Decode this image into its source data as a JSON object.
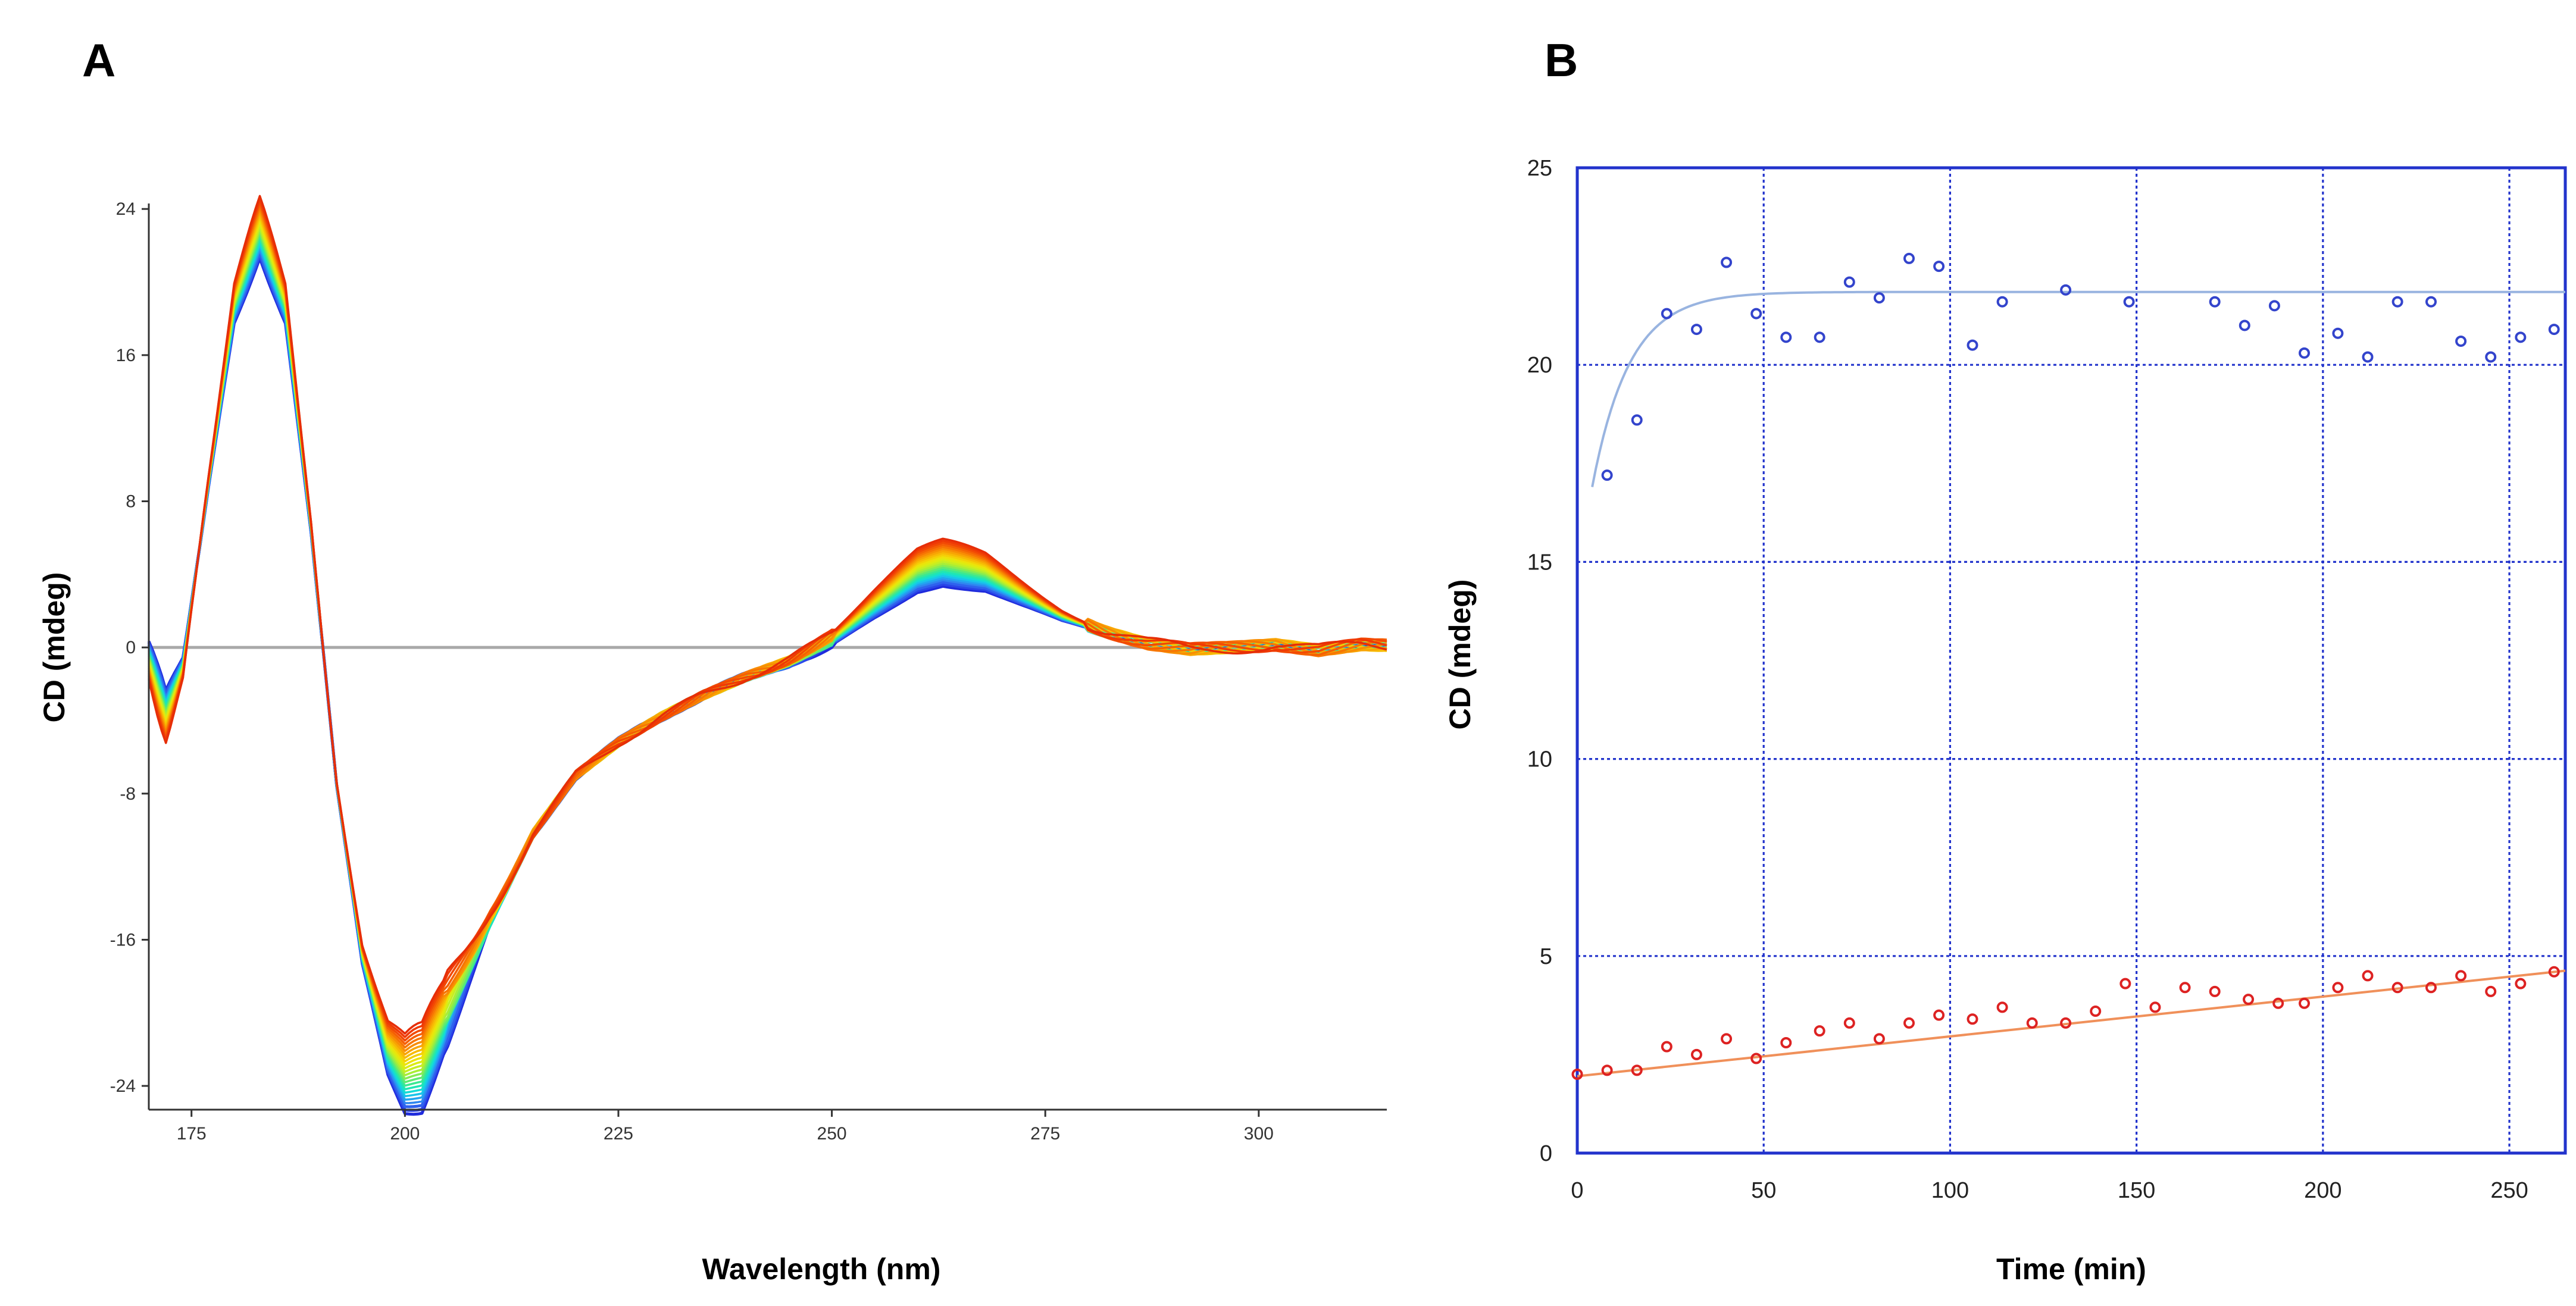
{
  "chart_data": [
    {
      "panel": "A",
      "type": "line",
      "title": "",
      "xlabel": "Wavelength (nm)",
      "ylabel": "CD (mdeg)",
      "xlim": [
        170,
        315
      ],
      "ylim": [
        -25.3,
        24.3
      ],
      "xticks": [
        175,
        200,
        225,
        250,
        275,
        300
      ],
      "yticks": [
        24,
        16,
        8,
        0,
        -8,
        -16,
        -24
      ],
      "grid": false,
      "zero_line": true,
      "series_count": 24,
      "series_colors": [
        "#1f2bdc",
        "#2a45e8",
        "#2f62ee",
        "#2f86f0",
        "#22a5f0",
        "#19c4ea",
        "#15dcd4",
        "#1fe6b4",
        "#3be893",
        "#5eea73",
        "#86ec52",
        "#a9ee36",
        "#c6ee22",
        "#dcec12",
        "#ece30a",
        "#f4d006",
        "#f7bb04",
        "#f8a503",
        "#f88e03",
        "#f77603",
        "#f56003",
        "#f24a04",
        "#ef3a05",
        "#e62e08"
      ],
      "profile": {
        "x": [
          170,
          172,
          174,
          177,
          180,
          183,
          186,
          189,
          192,
          195,
          198,
          200,
          202,
          205,
          210,
          215,
          220,
          225,
          230,
          235,
          240,
          245,
          250,
          255,
          260,
          263,
          268,
          272,
          277,
          282,
          287,
          292,
          297,
          302,
          307,
          312,
          315
        ],
        "y": [
          -0.5,
          -3.5,
          -1.0,
          9.0,
          18.5,
          22.5,
          18.5,
          6.5,
          -7.5,
          -17.0,
          -22.5,
          -24.2,
          -24.0,
          -20.5,
          -15.0,
          -10.2,
          -7.0,
          -5.2,
          -3.8,
          -2.6,
          -1.6,
          -0.8,
          0.3,
          2.0,
          3.6,
          4.0,
          3.6,
          2.7,
          1.6,
          0.8,
          0.2,
          -0.1,
          0.0,
          0.15,
          -0.15,
          0.15,
          0.1
        ]
      }
    },
    {
      "panel": "B",
      "type": "scatter",
      "title": "",
      "xlabel": "Time (min)",
      "ylabel": "CD (mdeg)",
      "xlim": [
        0,
        265
      ],
      "ylim": [
        0,
        25
      ],
      "xticks": [
        0,
        50,
        100,
        150,
        200,
        250
      ],
      "yticks": [
        0,
        5,
        10,
        15,
        20,
        25
      ],
      "grid": true,
      "series": [
        {
          "name": "blue",
          "color": "#3344cc",
          "x": [
            8,
            16,
            24,
            32,
            40,
            48,
            56,
            65,
            73,
            81,
            89,
            97,
            106,
            114,
            131,
            148,
            171,
            179,
            187,
            195,
            204,
            212,
            220,
            229,
            237,
            245,
            253,
            262
          ],
          "y": [
            17.2,
            18.6,
            21.3,
            20.9,
            22.6,
            21.3,
            20.7,
            20.7,
            22.1,
            21.7,
            22.7,
            22.5,
            20.5,
            21.6,
            21.9,
            21.6,
            21.6,
            21.0,
            21.5,
            20.3,
            20.8,
            20.2,
            21.6,
            21.6,
            20.6,
            20.2,
            20.7,
            20.9
          ]
        },
        {
          "name": "red",
          "color": "#dd2222",
          "x": [
            0,
            8,
            16,
            24,
            32,
            40,
            48,
            56,
            65,
            73,
            81,
            89,
            97,
            106,
            114,
            122,
            131,
            139,
            147,
            155,
            163,
            171,
            180,
            188,
            195,
            204,
            212,
            220,
            229,
            237,
            245,
            253,
            262
          ],
          "y": [
            2.0,
            2.1,
            2.1,
            2.7,
            2.5,
            2.9,
            2.4,
            2.8,
            3.1,
            3.3,
            2.9,
            3.3,
            3.5,
            3.4,
            3.7,
            3.3,
            3.3,
            3.6,
            4.3,
            3.7,
            4.2,
            4.1,
            3.9,
            3.8,
            3.8,
            4.2,
            4.5,
            4.2,
            4.2,
            4.5,
            4.1,
            4.3,
            4.6
          ]
        }
      ],
      "fits": [
        {
          "name": "blue-fit",
          "color": "#99b4e0",
          "model": "exponential",
          "plateau": 21.85,
          "start": 16.9,
          "x0": 4,
          "tau": 10,
          "x_end": 265
        },
        {
          "name": "red-fit",
          "color": "#f0905a",
          "model": "linear",
          "intercept": 1.95,
          "slope": 0.0101,
          "x_start": 0,
          "x_end": 265
        }
      ]
    }
  ],
  "panels": {
    "a_label": "A",
    "b_label": "B"
  }
}
